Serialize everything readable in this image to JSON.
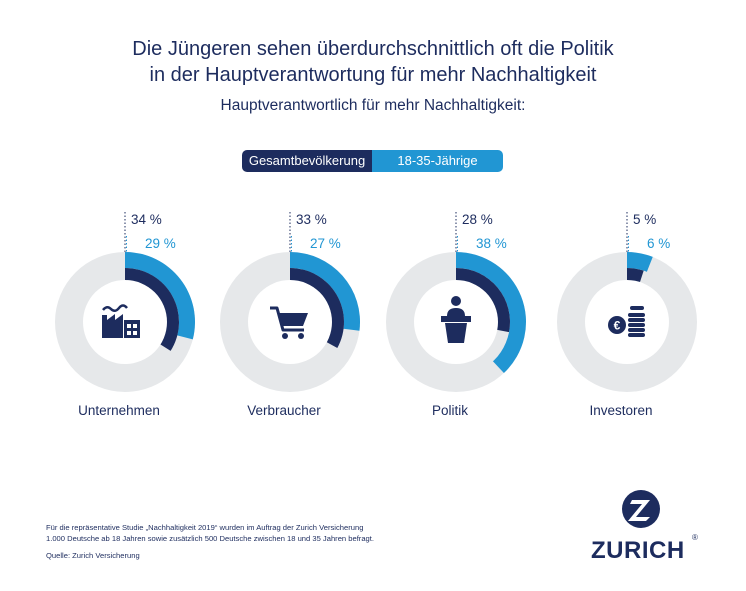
{
  "header": {
    "title_line1": "Die Jüngeren sehen überdurchschnittlich oft die Politik",
    "title_line2": "in der Hauptverantwortung für mehr Nachhaltigkeit",
    "subtitle": "Hauptverantwortlich für mehr Nachhaltigkeit:"
  },
  "colors": {
    "dark": "#1d2c5e",
    "light": "#2196d3",
    "track": "#e6e8ea",
    "inner": "#ffffff"
  },
  "chart_data": {
    "type": "pie",
    "title": "Hauptverantwortlich für mehr Nachhaltigkeit:",
    "series": [
      {
        "name": "Gesamtbevölkerung",
        "color": "#1d2c5e"
      },
      {
        "name": "18-35-Jährige",
        "color": "#2196d3"
      }
    ],
    "unit": "%",
    "categories": [
      {
        "label": "Unternehmen",
        "icon": "factory-icon",
        "values": [
          34,
          29
        ]
      },
      {
        "label": "Verbraucher",
        "icon": "shopping-cart-icon",
        "values": [
          33,
          27
        ]
      },
      {
        "label": "Politik",
        "icon": "speaker-podium-icon",
        "values": [
          28,
          38
        ]
      },
      {
        "label": "Investoren",
        "icon": "euro-coins-icon",
        "values": [
          5,
          6
        ]
      }
    ]
  },
  "footer": {
    "note_line1": "Für die repräsentative Studie „Nachhaltigkeit 2019“ wurden im Auftrag der Zurich Versicherung",
    "note_line2": "1.000 Deutsche ab 18 Jahren sowie zusätzlich 500 Deutsche zwischen 18 und 35 Jahren befragt.",
    "source": "Quelle: Zurich Versicherung"
  },
  "logo": {
    "wordmark": "ZURICH",
    "registered": "®"
  }
}
